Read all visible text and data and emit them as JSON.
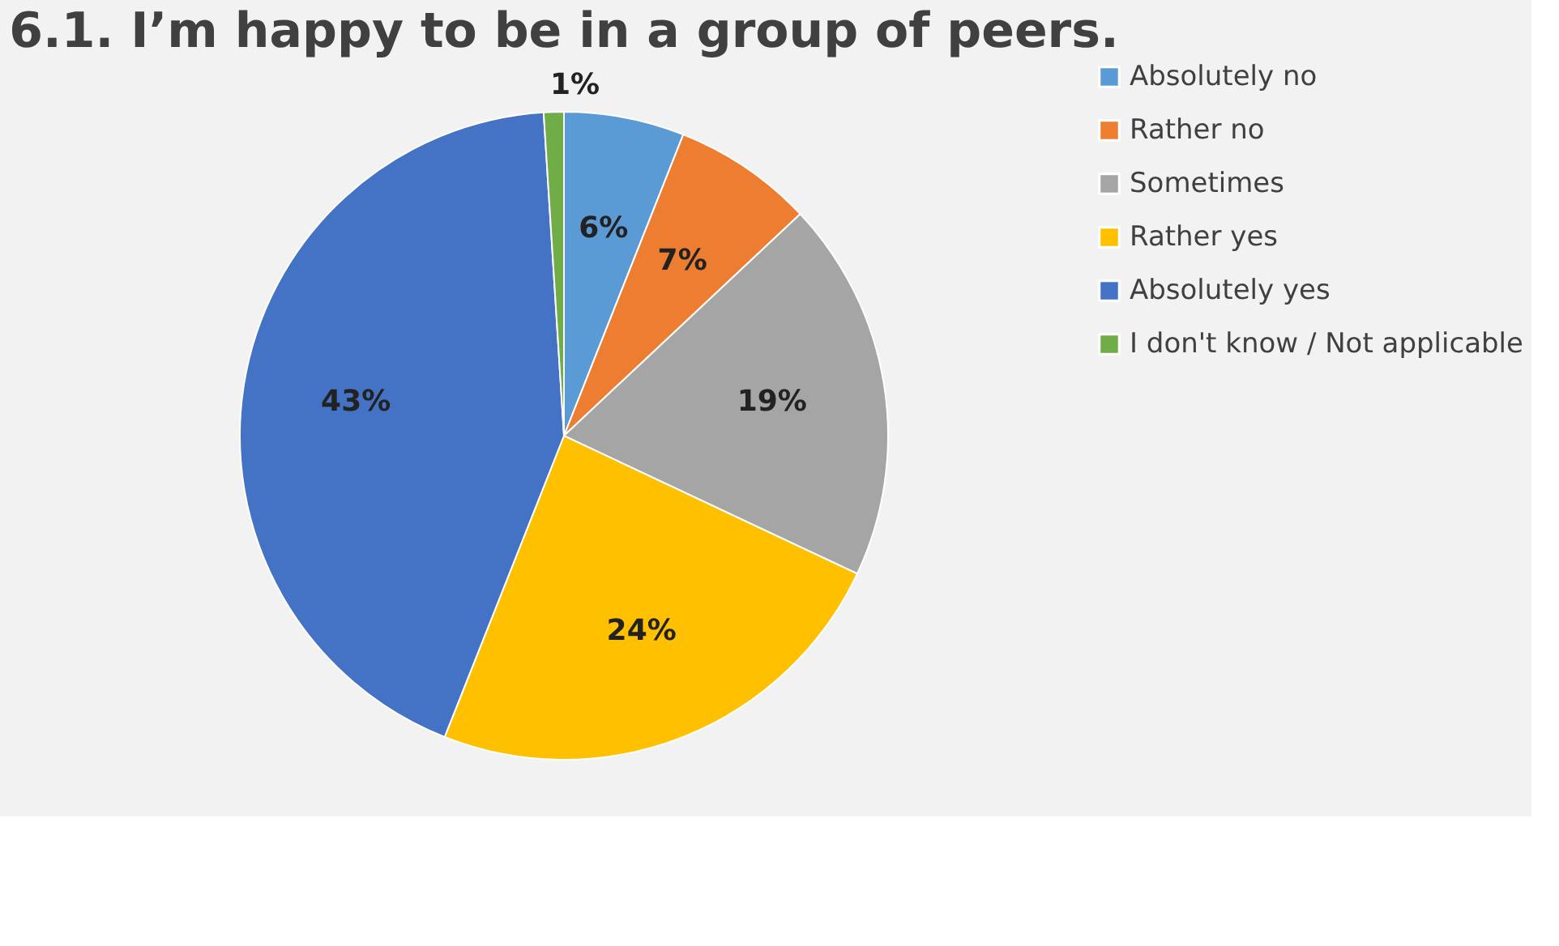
{
  "chart_data": {
    "type": "pie",
    "title": "6.1. I’m happy to be in a group of peers.",
    "categories": [
      "Absolutely no",
      "Rather no",
      "Sometimes",
      "Rather yes",
      "Absolutely yes",
      "I don't know / Not applicable"
    ],
    "values": [
      6,
      7,
      19,
      24,
      43,
      1
    ],
    "value_labels": [
      "6%",
      "7%",
      "19%",
      "24%",
      "43%",
      "1%"
    ],
    "colors": [
      "#5b9bd5",
      "#ed7d31",
      "#a5a5a5",
      "#ffc000",
      "#4472c4",
      "#70ad47"
    ],
    "legend": "right"
  }
}
